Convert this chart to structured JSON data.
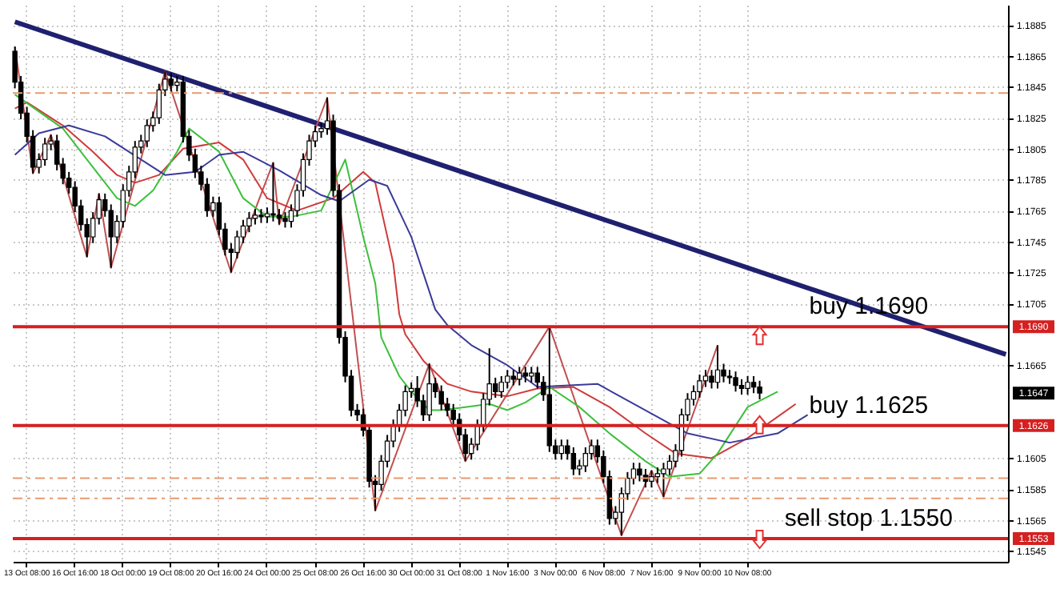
{
  "chart_data": {
    "type": "candlestick",
    "categories": [
      null,
      null,
      "13 Oct 08:00",
      null,
      null,
      null,
      null,
      null,
      null,
      null,
      "16 Oct 16:00",
      null,
      null,
      null,
      null,
      null,
      null,
      null,
      "18 Oct 00:00",
      null,
      null,
      null,
      null,
      null,
      null,
      null,
      "19 Oct 08:00",
      null,
      null,
      null,
      null,
      null,
      null,
      null,
      "20 Oct 16:00",
      null,
      null,
      null,
      null,
      null,
      null,
      null,
      "24 Oct 00:00",
      null,
      null,
      null,
      null,
      null,
      null,
      null,
      "25 Oct 08:00",
      null,
      null,
      null,
      null,
      null,
      null,
      null,
      "26 Oct 16:00",
      null,
      null,
      null,
      null,
      null,
      null,
      null,
      "30 Oct 00:00",
      null,
      null,
      null,
      null,
      null,
      null,
      null,
      "31 Oct 08:00",
      null,
      null,
      null,
      null,
      null,
      null,
      null,
      "1 Nov 16:00",
      null,
      null,
      null,
      null,
      null,
      null,
      null,
      "3 Nov 00:00",
      null,
      null,
      null,
      null,
      null,
      null,
      null,
      "6 Nov 08:00",
      null,
      null,
      null,
      null,
      null,
      null,
      null,
      "7 Nov 16:00",
      null,
      null,
      null,
      null,
      null,
      null,
      null,
      "9 Nov 00:00",
      null,
      null,
      null,
      null,
      null,
      null,
      null,
      "10 Nov 08:00",
      null,
      null,
      null,
      null,
      null,
      null,
      null,
      null,
      null,
      null,
      null,
      null,
      null,
      null,
      null,
      null,
      null,
      null,
      null,
      null,
      null,
      null,
      null,
      null,
      null,
      null,
      null,
      null,
      null,
      null,
      null,
      null,
      null,
      null,
      null,
      null,
      null,
      null,
      null,
      null,
      null,
      null,
      null
    ],
    "ohlc": [
      [
        1.1868,
        1.1871,
        1.1844,
        1.1848
      ],
      [
        1.1848,
        1.1852,
        1.1824,
        1.1828
      ],
      [
        1.1828,
        1.1832,
        1.1809,
        1.1813
      ],
      [
        1.1813,
        1.1817,
        1.1789,
        1.1793
      ],
      [
        1.1793,
        1.1802,
        1.1789,
        1.1798
      ],
      [
        1.1798,
        1.1812,
        1.1794,
        1.1808
      ],
      [
        1.1808,
        1.1814,
        1.1804,
        1.181
      ],
      [
        1.181,
        1.1814,
        1.1791,
        1.1795
      ],
      [
        1.1795,
        1.1799,
        1.1782,
        1.1786
      ],
      [
        1.1786,
        1.179,
        1.1776,
        1.178
      ],
      [
        1.178,
        1.1784,
        1.1764,
        1.1768
      ],
      [
        1.1768,
        1.1772,
        1.1752,
        1.1756
      ],
      [
        1.1756,
        1.176,
        1.1735,
        1.1748
      ],
      [
        1.1748,
        1.1764,
        1.1744,
        1.176
      ],
      [
        1.176,
        1.1776,
        1.1756,
        1.1772
      ],
      [
        1.1772,
        1.1776,
        1.1761,
        1.1765
      ],
      [
        1.1765,
        1.1769,
        1.1728,
        1.1748
      ],
      [
        1.1748,
        1.1762,
        1.1744,
        1.1758
      ],
      [
        1.1758,
        1.1782,
        1.1754,
        1.1778
      ],
      [
        1.1778,
        1.1794,
        1.1774,
        1.179
      ],
      [
        1.179,
        1.181,
        1.1786,
        1.1806
      ],
      [
        1.1806,
        1.1814,
        1.1802,
        1.181
      ],
      [
        1.181,
        1.1824,
        1.1806,
        1.182
      ],
      [
        1.182,
        1.1829,
        1.1816,
        1.1825
      ],
      [
        1.1825,
        1.1847,
        1.1821,
        1.1843
      ],
      [
        1.1843,
        1.1855,
        1.1839,
        1.185
      ],
      [
        1.185,
        1.1854,
        1.1842,
        1.1846
      ],
      [
        1.1846,
        1.1852,
        1.1842,
        1.1848
      ],
      [
        1.1848,
        1.1852,
        1.1809,
        1.1813
      ],
      [
        1.1813,
        1.1817,
        1.1797,
        1.1801
      ],
      [
        1.1801,
        1.1805,
        1.1786,
        1.179
      ],
      [
        1.179,
        1.1794,
        1.1778,
        1.1782
      ],
      [
        1.1782,
        1.1786,
        1.1761,
        1.1765
      ],
      [
        1.1765,
        1.1774,
        1.1761,
        1.177
      ],
      [
        1.177,
        1.1774,
        1.1749,
        1.1753
      ],
      [
        1.1753,
        1.1757,
        1.1736,
        1.174
      ],
      [
        1.174,
        1.1744,
        1.1725,
        1.1738
      ],
      [
        1.1738,
        1.1752,
        1.1734,
        1.1748
      ],
      [
        1.1748,
        1.1759,
        1.1744,
        1.1755
      ],
      [
        1.1755,
        1.1764,
        1.1751,
        1.176
      ],
      [
        1.176,
        1.1766,
        1.1756,
        1.1762
      ],
      [
        1.1762,
        1.1766,
        1.1757,
        1.1761
      ],
      [
        1.1761,
        1.1767,
        1.1757,
        1.1763
      ],
      [
        1.1763,
        1.1796,
        1.1758,
        1.1762
      ],
      [
        1.1762,
        1.1766,
        1.1756,
        1.176
      ],
      [
        1.176,
        1.1764,
        1.1754,
        1.1758
      ],
      [
        1.1758,
        1.1769,
        1.1754,
        1.1765
      ],
      [
        1.1765,
        1.1782,
        1.1761,
        1.1778
      ],
      [
        1.1778,
        1.1802,
        1.1774,
        1.1798
      ],
      [
        1.1798,
        1.1814,
        1.1794,
        1.181
      ],
      [
        1.181,
        1.182,
        1.1806,
        1.1816
      ],
      [
        1.1816,
        1.1822,
        1.1812,
        1.1818
      ],
      [
        1.1818,
        1.1838,
        1.1814,
        1.1823
      ],
      [
        1.1823,
        1.1827,
        1.1774,
        1.1778
      ],
      [
        1.1778,
        1.1782,
        1.1679,
        1.1683
      ],
      [
        1.1683,
        1.1687,
        1.1654,
        1.1658
      ],
      [
        1.1658,
        1.1662,
        1.1632,
        1.1636
      ],
      [
        1.1636,
        1.164,
        1.1629,
        1.1633
      ],
      [
        1.1633,
        1.1637,
        1.1619,
        1.1623
      ],
      [
        1.1623,
        1.1627,
        1.1586,
        1.159
      ],
      [
        1.159,
        1.1594,
        1.1571,
        1.1588
      ],
      [
        1.1588,
        1.1607,
        1.1584,
        1.1603
      ],
      [
        1.1603,
        1.162,
        1.1599,
        1.1616
      ],
      [
        1.1616,
        1.163,
        1.1612,
        1.1626
      ],
      [
        1.1626,
        1.164,
        1.1622,
        1.1636
      ],
      [
        1.1636,
        1.1652,
        1.1632,
        1.1648
      ],
      [
        1.1648,
        1.1654,
        1.1644,
        1.165
      ],
      [
        1.165,
        1.1658,
        1.1638,
        1.1642
      ],
      [
        1.1642,
        1.1646,
        1.1629,
        1.1633
      ],
      [
        1.1633,
        1.1666,
        1.1629,
        1.1653
      ],
      [
        1.1653,
        1.1657,
        1.1644,
        1.1648
      ],
      [
        1.1648,
        1.1652,
        1.1636,
        1.164
      ],
      [
        1.164,
        1.1644,
        1.1632,
        1.1636
      ],
      [
        1.1636,
        1.164,
        1.1626,
        1.163
      ],
      [
        1.163,
        1.1634,
        1.1616,
        1.162
      ],
      [
        1.162,
        1.1624,
        1.1603,
        1.1608
      ],
      [
        1.1608,
        1.1618,
        1.1604,
        1.1614
      ],
      [
        1.1614,
        1.163,
        1.161,
        1.1626
      ],
      [
        1.1626,
        1.1647,
        1.1622,
        1.1643
      ],
      [
        1.1643,
        1.1676,
        1.1639,
        1.1653
      ],
      [
        1.1653,
        1.1657,
        1.1644,
        1.1648
      ],
      [
        1.1648,
        1.1658,
        1.1644,
        1.1654
      ],
      [
        1.1654,
        1.1662,
        1.165,
        1.1658
      ],
      [
        1.1658,
        1.1662,
        1.1652,
        1.1656
      ],
      [
        1.1656,
        1.1664,
        1.1652,
        1.166
      ],
      [
        1.166,
        1.1664,
        1.1654,
        1.1658
      ],
      [
        1.1658,
        1.1664,
        1.1654,
        1.166
      ],
      [
        1.166,
        1.1664,
        1.165,
        1.1654
      ],
      [
        1.1654,
        1.1658,
        1.1642,
        1.1646
      ],
      [
        1.1646,
        1.169,
        1.1609,
        1.1613
      ],
      [
        1.1613,
        1.1617,
        1.1604,
        1.1608
      ],
      [
        1.1608,
        1.1617,
        1.1604,
        1.1613
      ],
      [
        1.1613,
        1.1617,
        1.1604,
        1.1608
      ],
      [
        1.1608,
        1.1612,
        1.1594,
        1.1598
      ],
      [
        1.1598,
        1.1604,
        1.1594,
        1.16
      ],
      [
        1.16,
        1.1612,
        1.1596,
        1.1608
      ],
      [
        1.1608,
        1.1617,
        1.1604,
        1.1613
      ],
      [
        1.1613,
        1.1617,
        1.1602,
        1.1606
      ],
      [
        1.1606,
        1.161,
        1.1589,
        1.1593
      ],
      [
        1.1593,
        1.1597,
        1.1562,
        1.1566
      ],
      [
        1.1566,
        1.1574,
        1.1562,
        1.157
      ],
      [
        1.157,
        1.1586,
        1.1555,
        1.1582
      ],
      [
        1.1582,
        1.1596,
        1.1578,
        1.1592
      ],
      [
        1.1592,
        1.1602,
        1.1588,
        1.1598
      ],
      [
        1.1598,
        1.1602,
        1.159,
        1.1594
      ],
      [
        1.1594,
        1.1598,
        1.1586,
        1.159
      ],
      [
        1.159,
        1.1597,
        1.1586,
        1.1593
      ],
      [
        1.1593,
        1.1599,
        1.1589,
        1.1595
      ],
      [
        1.1595,
        1.1602,
        1.158,
        1.1598
      ],
      [
        1.1598,
        1.1607,
        1.1594,
        1.1603
      ],
      [
        1.1603,
        1.1614,
        1.1599,
        1.161
      ],
      [
        1.161,
        1.1637,
        1.1606,
        1.1633
      ],
      [
        1.1633,
        1.1647,
        1.1629,
        1.1643
      ],
      [
        1.1643,
        1.1652,
        1.1639,
        1.1648
      ],
      [
        1.1648,
        1.1659,
        1.1644,
        1.1655
      ],
      [
        1.1655,
        1.1662,
        1.1651,
        1.1658
      ],
      [
        1.1658,
        1.1662,
        1.165,
        1.1654
      ],
      [
        1.1654,
        1.1678,
        1.165,
        1.1662
      ],
      [
        1.1662,
        1.1666,
        1.1654,
        1.1658
      ],
      [
        1.1658,
        1.1662,
        1.1653,
        1.1657
      ],
      [
        1.1657,
        1.1661,
        1.1648,
        1.1652
      ],
      [
        1.1652,
        1.1656,
        1.1646,
        1.165
      ],
      [
        1.165,
        1.1658,
        1.1646,
        1.1654
      ],
      [
        1.1654,
        1.1658,
        1.1647,
        1.1651
      ],
      [
        1.1651,
        1.1655,
        1.1643,
        1.1647
      ],
      null,
      null,
      null,
      null,
      null,
      null,
      null,
      null,
      null,
      null,
      null,
      null,
      null,
      null,
      null,
      null,
      null,
      null,
      null,
      null,
      null,
      null,
      null,
      null,
      null,
      null,
      null,
      null,
      null,
      null,
      null,
      null,
      null,
      null,
      null,
      null,
      null,
      null,
      null,
      null,
      null
    ],
    "series": [
      {
        "type": "line",
        "color": "#202070",
        "values": [
          1.1887,
          null,
          null,
          null,
          null,
          null,
          null,
          null,
          null,
          null,
          null,
          null,
          null,
          null,
          null,
          null,
          null,
          null,
          null,
          null,
          null,
          null,
          null,
          null,
          null,
          null,
          null,
          null,
          null,
          null,
          null,
          null,
          null,
          null,
          null,
          null,
          null,
          null,
          null,
          null,
          null,
          null,
          null,
          null,
          null,
          null,
          null,
          null,
          null,
          null,
          null,
          null,
          null,
          null,
          null,
          null,
          null,
          null,
          null,
          null,
          null,
          null,
          null,
          null,
          null,
          null,
          null,
          null,
          null,
          null,
          null,
          null,
          null,
          null,
          null,
          null,
          null,
          null,
          null,
          null,
          null,
          null,
          null,
          null,
          null,
          null,
          null,
          null,
          null,
          null,
          null,
          null,
          null,
          null,
          null,
          null,
          null,
          null,
          null,
          null,
          null,
          null,
          null,
          null,
          null,
          null,
          null,
          null,
          null,
          null,
          null,
          null,
          null,
          null,
          null,
          null,
          null,
          null,
          null,
          null,
          null,
          null,
          null,
          null,
          null,
          null,
          null,
          null,
          null,
          null,
          null,
          null,
          null,
          null,
          null,
          null,
          null,
          null,
          null,
          null,
          null,
          null,
          null,
          null,
          null,
          null,
          null,
          null,
          null,
          null,
          null,
          null,
          null,
          null,
          null,
          null,
          null,
          null,
          null,
          null,
          null,
          null,
          null,
          null,
          null,
          1.1672
        ]
      },
      {
        "type": "line",
        "color": "#c05050",
        "values": [
          1.1871,
          null,
          null,
          1.1789,
          null,
          null,
          1.1814,
          null,
          null,
          null,
          null,
          null,
          1.1735,
          null,
          1.1776,
          null,
          1.1728,
          null,
          null,
          null,
          null,
          null,
          null,
          null,
          null,
          1.1855,
          null,
          null,
          null,
          null,
          null,
          null,
          null,
          null,
          null,
          null,
          1.1725,
          null,
          null,
          null,
          null,
          null,
          null,
          1.1796,
          1.1756,
          null,
          null,
          null,
          null,
          null,
          null,
          null,
          1.1838,
          null,
          null,
          null,
          null,
          null,
          null,
          null,
          1.1571,
          null,
          null,
          null,
          null,
          null,
          null,
          null,
          null,
          1.1666,
          null,
          null,
          null,
          null,
          null,
          1.1603,
          null,
          null,
          null,
          null,
          null,
          null,
          null,
          null,
          null,
          null,
          null,
          null,
          null,
          1.169,
          null,
          null,
          null,
          null,
          null,
          null,
          null,
          null,
          null,
          null,
          null,
          1.1555,
          null,
          null,
          null,
          null,
          1.1597,
          null,
          1.158,
          null,
          null,
          null,
          null,
          null,
          null,
          null,
          null,
          1.1678,
          null,
          null,
          null,
          null,
          null,
          null,
          null,
          null,
          null,
          null,
          null,
          null,
          null,
          null,
          null,
          null,
          null,
          null,
          null,
          null,
          null,
          null,
          null,
          null,
          null,
          null,
          null,
          null,
          null,
          null,
          null,
          null,
          null,
          null,
          null,
          null,
          null,
          null,
          null,
          null,
          null,
          null,
          null,
          null,
          null,
          null,
          null,
          null
        ]
      },
      {
        "type": "line",
        "color": "#d03a3a",
        "values": [
          1.1831,
          null,
          1.1835,
          null,
          null,
          null,
          null,
          null,
          1.182,
          null,
          null,
          null,
          null,
          1.1803,
          null,
          null,
          null,
          1.1788,
          null,
          null,
          1.1783,
          null,
          null,
          null,
          1.1788,
          null,
          null,
          null,
          1.1805,
          null,
          null,
          null,
          null,
          null,
          1.1809,
          null,
          null,
          null,
          1.1798,
          null,
          null,
          null,
          1.1773,
          null,
          null,
          null,
          null,
          1.1765,
          null,
          null,
          null,
          null,
          null,
          1.1773,
          null,
          null,
          null,
          null,
          1.179,
          null,
          1.1783,
          null,
          null,
          1.1731,
          1.1698,
          1.1685,
          null,
          null,
          1.1668,
          null,
          null,
          null,
          1.1653,
          null,
          null,
          null,
          1.1648,
          null,
          null,
          null,
          null,
          null,
          1.1645,
          null,
          null,
          null,
          null,
          1.165,
          null,
          null,
          null,
          null,
          null,
          1.1651,
          null,
          null,
          null,
          null,
          null,
          1.1638,
          null,
          null,
          null,
          null,
          null,
          1.1621,
          null,
          null,
          null,
          null,
          1.1608,
          null,
          null,
          null,
          null,
          null,
          1.1605,
          null,
          null,
          null,
          null,
          null,
          1.1618,
          null,
          null,
          null,
          null,
          null,
          null,
          null,
          1.164,
          null,
          null,
          null,
          null,
          null,
          null,
          null,
          null,
          null,
          null,
          null,
          null,
          null,
          null,
          null,
          null,
          null,
          null,
          null,
          null,
          null,
          null,
          null,
          null,
          null,
          null,
          null,
          null,
          null,
          null,
          null,
          null,
          null,
          null,
          null
        ]
      },
      {
        "type": "line",
        "color": "#3cc03c",
        "values": [
          1.184,
          null,
          null,
          null,
          null,
          null,
          null,
          null,
          1.1818,
          null,
          null,
          null,
          1.1798,
          null,
          null,
          null,
          null,
          1.1773,
          null,
          null,
          1.1768,
          null,
          null,
          1.1778,
          null,
          null,
          null,
          1.1803,
          null,
          1.1818,
          null,
          null,
          null,
          null,
          1.1803,
          null,
          null,
          null,
          1.1773,
          null,
          null,
          null,
          1.1761,
          null,
          null,
          null,
          1.1761,
          null,
          null,
          null,
          null,
          1.1765,
          null,
          null,
          null,
          1.1798,
          null,
          null,
          1.1748,
          null,
          1.1718,
          1.1683,
          null,
          null,
          1.1658,
          null,
          1.1648,
          null,
          null,
          1.1636,
          null,
          1.1636,
          null,
          null,
          null,
          1.1638,
          null,
          null,
          null,
          1.164,
          null,
          null,
          1.1636,
          null,
          null,
          1.1641,
          null,
          null,
          null,
          1.1651,
          null,
          null,
          null,
          null,
          1.1638,
          null,
          null,
          null,
          null,
          1.1621,
          null,
          null,
          null,
          null,
          null,
          1.1603,
          null,
          null,
          null,
          1.1593,
          null,
          null,
          null,
          null,
          1.1595,
          null,
          null,
          1.1608,
          null,
          null,
          null,
          null,
          1.1638,
          null,
          null,
          null,
          null,
          1.1648,
          null,
          null,
          null,
          null,
          null,
          null,
          null,
          null,
          null,
          null,
          null,
          null,
          null,
          null,
          null,
          null,
          null,
          null,
          null,
          null,
          null,
          null,
          null,
          null,
          null,
          null,
          null,
          null,
          null,
          null,
          null,
          null,
          null,
          null,
          null,
          null,
          null,
          null
        ]
      },
      {
        "type": "line",
        "color": "#3a3a9a",
        "values": [
          1.1801,
          null,
          null,
          null,
          1.1815,
          null,
          null,
          null,
          null,
          1.182,
          null,
          null,
          null,
          null,
          null,
          1.1813,
          null,
          null,
          null,
          null,
          null,
          1.1798,
          null,
          null,
          null,
          1.1788,
          null,
          null,
          null,
          null,
          1.179,
          null,
          null,
          null,
          1.1801,
          null,
          null,
          null,
          1.1803,
          null,
          null,
          null,
          null,
          null,
          1.1791,
          null,
          null,
          null,
          null,
          null,
          null,
          1.1775,
          null,
          null,
          1.1771,
          null,
          null,
          null,
          null,
          1.1785,
          null,
          null,
          1.1781,
          null,
          null,
          null,
          1.1748,
          null,
          null,
          null,
          1.1701,
          null,
          1.1691,
          null,
          null,
          null,
          1.1678,
          null,
          null,
          null,
          null,
          null,
          1.1665,
          null,
          null,
          null,
          null,
          1.1651,
          null,
          null,
          null,
          null,
          null,
          null,
          null,
          null,
          null,
          1.1653,
          null,
          null,
          null,
          null,
          null,
          null,
          1.1638,
          null,
          null,
          null,
          null,
          null,
          null,
          null,
          1.1621,
          null,
          null,
          null,
          null,
          null,
          null,
          1.1615,
          null,
          null,
          null,
          null,
          null,
          null,
          null,
          1.1621,
          null,
          null,
          null,
          null,
          1.1633,
          null,
          null,
          null,
          null,
          null,
          null,
          null,
          null,
          null,
          null,
          null,
          null,
          null,
          null,
          null,
          null,
          null,
          null,
          null,
          null,
          null,
          null,
          null,
          null,
          null,
          null,
          null,
          null,
          null,
          null,
          null,
          null,
          null
        ]
      }
    ],
    "ylim": [
      1.1538,
      1.1898
    ],
    "yticks": [
      1.1885,
      1.1865,
      1.1845,
      1.1825,
      1.1805,
      1.1785,
      1.1765,
      1.1745,
      1.1725,
      1.1705,
      1.1665,
      1.1605,
      1.1585,
      1.1565,
      1.1545
    ],
    "annotations": [
      {
        "text": "1.1690",
        "y": 1.169
      },
      {
        "text": "1.1647",
        "y": 1.1647
      },
      {
        "text": "1.1626",
        "y": 1.1626
      },
      {
        "text": "1.1553",
        "y": 1.1553
      }
    ],
    "grid": true,
    "ref_lines": [
      {
        "axis": "y",
        "value": 1.169,
        "color": "#d42020",
        "label": "buy 1.1690"
      },
      {
        "axis": "y",
        "value": 1.1626,
        "color": "#d42020",
        "label": "buy 1.1625"
      },
      {
        "axis": "y",
        "value": 1.1553,
        "color": "#d42020",
        "label": "sell stop 1.1550"
      },
      {
        "axis": "y",
        "value": 1.1841,
        "color": "#e89a70",
        "line_style": "dashed"
      },
      {
        "axis": "y",
        "value": 1.1592,
        "color": "#e89a70",
        "line_style": "dashed"
      },
      {
        "axis": "y",
        "value": 1.1579,
        "color": "#e89a70",
        "line_style": "dashed"
      }
    ]
  }
}
